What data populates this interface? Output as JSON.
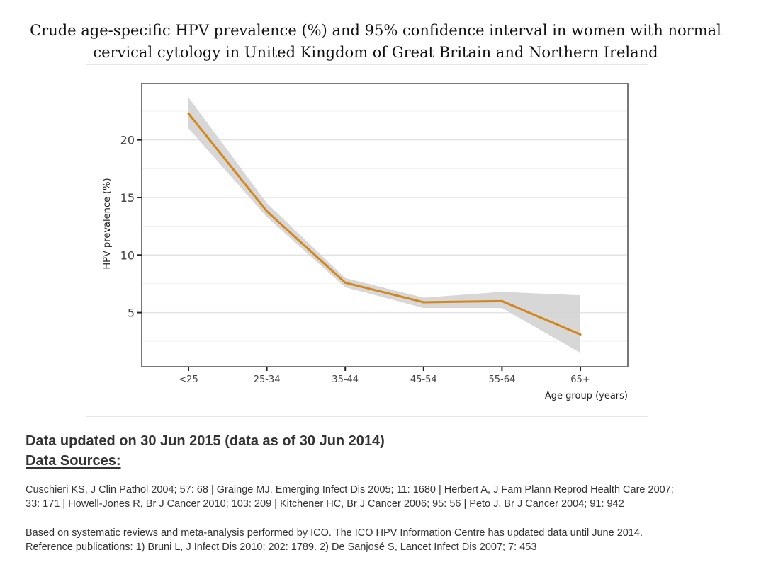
{
  "title": {
    "line1": "Crude age-specific HPV prevalence (%) and 95% confidence interval in women with normal",
    "line2": "cervical cytology in United Kingdom of Great Britain and Northern Ireland"
  },
  "chart_data": {
    "type": "line",
    "title": "Crude age-specific HPV prevalence (%) and 95% confidence interval in women with normal cervical cytology in United Kingdom of Great Britain and Northern Ireland",
    "xlabel": "Age group (years)",
    "ylabel": "HPV prevalence (%)",
    "categories": [
      "<25",
      "25-34",
      "35-44",
      "45-54",
      "55-64",
      "65+"
    ],
    "series": [
      {
        "name": "HPV prevalence",
        "values": [
          22.3,
          13.8,
          7.6,
          5.9,
          6.0,
          3.1
        ],
        "ci_lower": [
          21.0,
          13.3,
          7.2,
          5.4,
          5.4,
          1.5
        ],
        "ci_upper": [
          23.7,
          14.5,
          8.0,
          6.3,
          6.8,
          6.5
        ],
        "color": "#d4861a",
        "band_color": "#d3d3d3"
      }
    ],
    "yticks": [
      5,
      10,
      15,
      20
    ],
    "ylim": [
      0.3,
      24.9
    ],
    "grid": true,
    "legend": "none"
  },
  "footer": {
    "updated": "Data updated on 30 Jun 2015 (data as of 30 Jun 2014)",
    "sources_title": "Data Sources:",
    "sources_line1": "Cuschieri KS, J Clin Pathol 2004; 57: 68 | Grainge MJ, Emerging Infect Dis 2005; 11: 1680 | Herbert A, J Fam Plann Reprod Health Care 2007;",
    "sources_line2": "33: 171 | Howell-Jones R, Br J Cancer 2010; 103: 209 | Kitchener HC, Br J Cancer 2006; 95: 56 | Peto J, Br J Cancer 2004; 91: 942",
    "note_line1": "Based on systematic reviews and meta-analysis performed by ICO. The ICO HPV Information Centre has updated data until June 2014.",
    "note_line2": "Reference publications: 1) Bruni L, J Infect Dis 2010; 202: 1789. 2) De Sanjosé S, Lancet Infect Dis 2007; 7: 453"
  }
}
